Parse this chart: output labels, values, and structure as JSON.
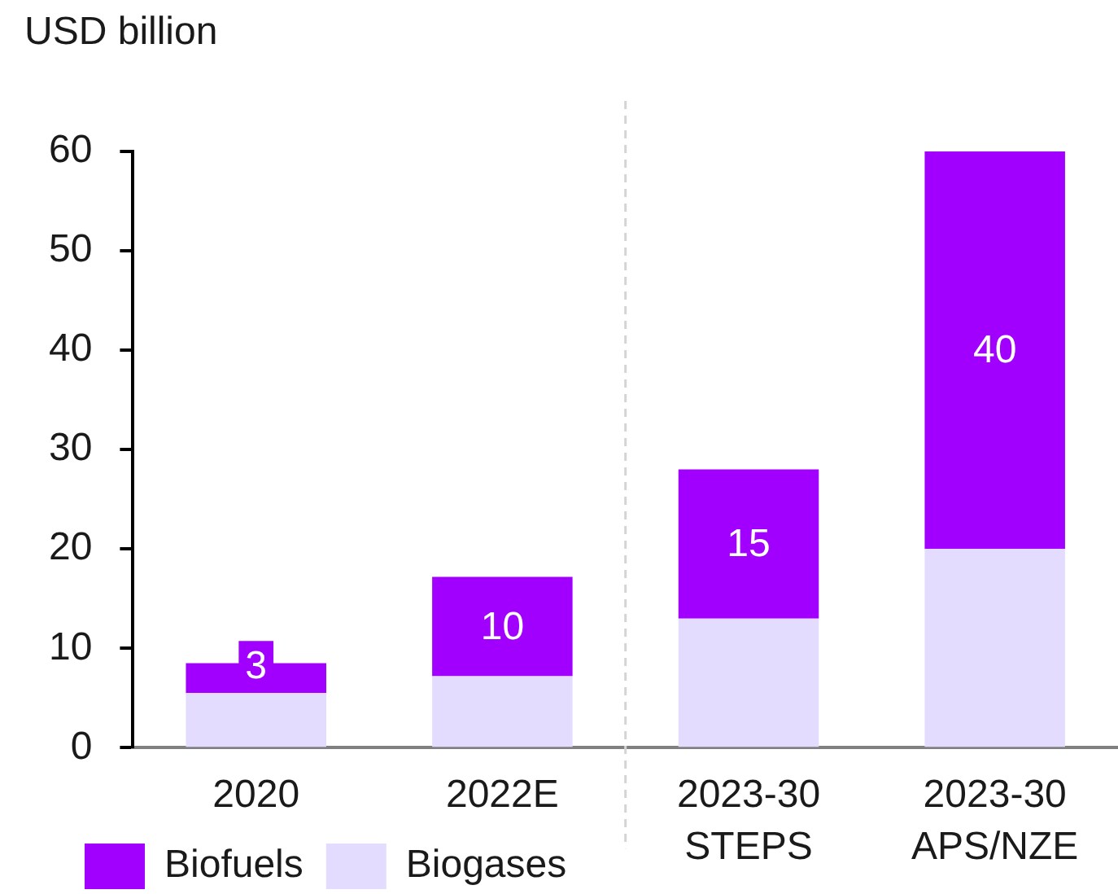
{
  "chart_data": {
    "type": "bar",
    "ylabel": "USD billion",
    "categories": [
      "2020",
      "2022E",
      "2023-30 STEPS",
      "2023-30 APS/NZE"
    ],
    "series": [
      {
        "name": "Biogases",
        "color": "#e3dcfe",
        "values": [
          5.5,
          7.2,
          13,
          20
        ]
      },
      {
        "name": "Biofuels",
        "color": "#a100ff",
        "values": [
          3,
          10,
          15,
          40
        ],
        "value_labels": [
          "3",
          "10",
          "15",
          "40"
        ]
      }
    ],
    "stacked": true,
    "ylim": [
      0,
      60
    ],
    "yticks": [
      0,
      10,
      20,
      30,
      40,
      50,
      60
    ],
    "legend": "bottom left"
  }
}
